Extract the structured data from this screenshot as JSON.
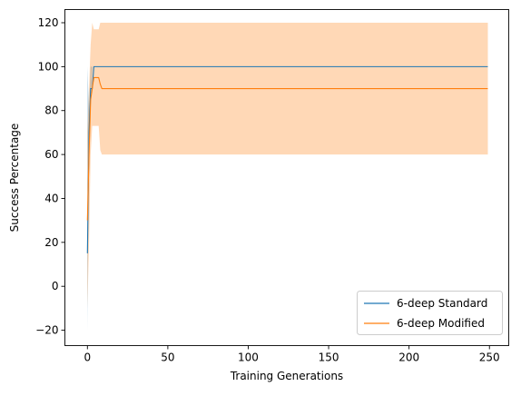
{
  "chart_data": {
    "type": "line",
    "title": "",
    "xlabel": "Training Generations",
    "ylabel": "Success Percentage",
    "xlim": [
      -14,
      262
    ],
    "ylim": [
      -27,
      126
    ],
    "xticks": [
      0,
      50,
      100,
      150,
      200,
      250
    ],
    "yticks": [
      -20,
      0,
      20,
      40,
      60,
      80,
      100,
      120
    ],
    "grid": false,
    "legend_position": "lower-right",
    "series": [
      {
        "name": "6-deep Standard",
        "color": "#1f77b4",
        "band_color": "#1f77b4",
        "x": [
          0,
          1,
          2,
          3,
          4,
          5,
          249
        ],
        "y": [
          15,
          70,
          90,
          90,
          100,
          100,
          100
        ],
        "lower": [
          -20,
          60,
          80,
          100,
          100,
          100,
          100
        ],
        "upper": [
          100,
          80,
          100,
          100,
          100,
          100,
          100
        ]
      },
      {
        "name": "6-deep Modified",
        "color": "#ff7f0e",
        "band_color": "#ff7f0e",
        "x": [
          0,
          1,
          2,
          3,
          4,
          5,
          6,
          7,
          8,
          9,
          10,
          249
        ],
        "y": [
          30,
          60,
          85,
          90,
          95,
          95,
          95,
          95,
          92,
          90,
          90,
          90
        ],
        "lower": [
          -10,
          20,
          60,
          73,
          73,
          73,
          73,
          73,
          62,
          60,
          60,
          60
        ],
        "upper": [
          70,
          90,
          110,
          120,
          117,
          117,
          117,
          117,
          120,
          120,
          120,
          120
        ]
      }
    ]
  }
}
